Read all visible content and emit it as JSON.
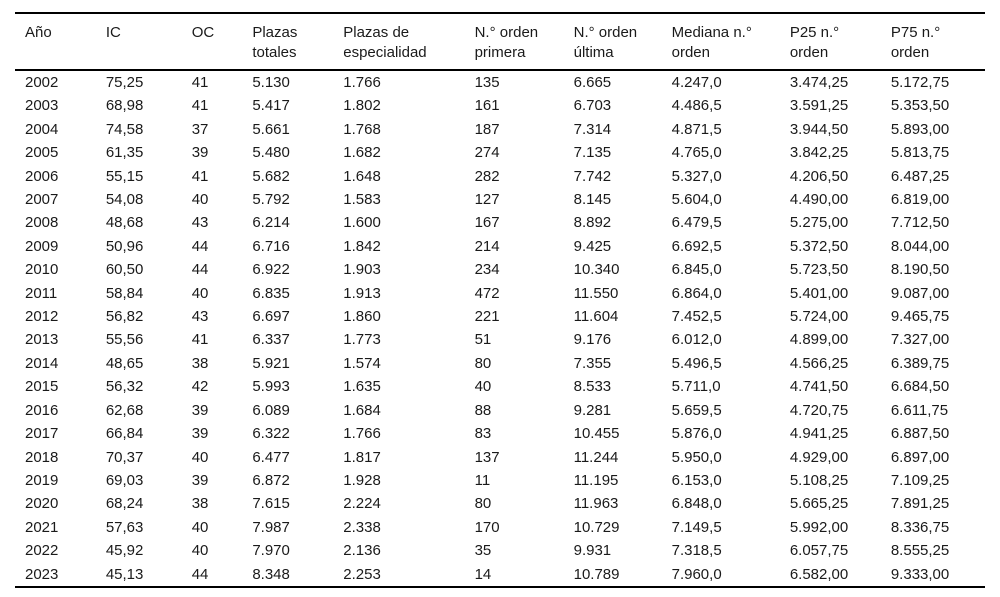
{
  "table": {
    "columns": [
      "Año",
      "IC",
      "OC",
      "Plazas totales",
      "Plazas de especialidad",
      "N.° orden primera",
      "N.° orden última",
      "Mediana n.° orden",
      "P25 n.° orden",
      "P75 n.° orden"
    ],
    "rows": [
      [
        "2002",
        "75,25",
        "41",
        "5.130",
        "1.766",
        "135",
        "6.665",
        "4.247,0",
        "3.474,25",
        "5.172,75"
      ],
      [
        "2003",
        "68,98",
        "41",
        "5.417",
        "1.802",
        "161",
        "6.703",
        "4.486,5",
        "3.591,25",
        "5.353,50"
      ],
      [
        "2004",
        "74,58",
        "37",
        "5.661",
        "1.768",
        "187",
        "7.314",
        "4.871,5",
        "3.944,50",
        "5.893,00"
      ],
      [
        "2005",
        "61,35",
        "39",
        "5.480",
        "1.682",
        "274",
        "7.135",
        "4.765,0",
        "3.842,25",
        "5.813,75"
      ],
      [
        "2006",
        "55,15",
        "41",
        "5.682",
        "1.648",
        "282",
        "7.742",
        "5.327,0",
        "4.206,50",
        "6.487,25"
      ],
      [
        "2007",
        "54,08",
        "40",
        "5.792",
        "1.583",
        "127",
        "8.145",
        "5.604,0",
        "4.490,00",
        "6.819,00"
      ],
      [
        "2008",
        "48,68",
        "43",
        "6.214",
        "1.600",
        "167",
        "8.892",
        "6.479,5",
        "5.275,00",
        "7.712,50"
      ],
      [
        "2009",
        "50,96",
        "44",
        "6.716",
        "1.842",
        "214",
        "9.425",
        "6.692,5",
        "5.372,50",
        "8.044,00"
      ],
      [
        "2010",
        "60,50",
        "44",
        "6.922",
        "1.903",
        "234",
        "10.340",
        "6.845,0",
        "5.723,50",
        "8.190,50"
      ],
      [
        "2011",
        "58,84",
        "40",
        "6.835",
        "1.913",
        "472",
        "11.550",
        "6.864,0",
        "5.401,00",
        "9.087,00"
      ],
      [
        "2012",
        "56,82",
        "43",
        "6.697",
        "1.860",
        "221",
        "11.604",
        "7.452,5",
        "5.724,00",
        "9.465,75"
      ],
      [
        "2013",
        "55,56",
        "41",
        "6.337",
        "1.773",
        "51",
        "9.176",
        "6.012,0",
        "4.899,00",
        "7.327,00"
      ],
      [
        "2014",
        "48,65",
        "38",
        "5.921",
        "1.574",
        "80",
        "7.355",
        "5.496,5",
        "4.566,25",
        "6.389,75"
      ],
      [
        "2015",
        "56,32",
        "42",
        "5.993",
        "1.635",
        "40",
        "8.533",
        "5.711,0",
        "4.741,50",
        "6.684,50"
      ],
      [
        "2016",
        "62,68",
        "39",
        "6.089",
        "1.684",
        "88",
        "9.281",
        "5.659,5",
        "4.720,75",
        "6.611,75"
      ],
      [
        "2017",
        "66,84",
        "39",
        "6.322",
        "1.766",
        "83",
        "10.455",
        "5.876,0",
        "4.941,25",
        "6.887,50"
      ],
      [
        "2018",
        "70,37",
        "40",
        "6.477",
        "1.817",
        "137",
        "11.244",
        "5.950,0",
        "4.929,00",
        "6.897,00"
      ],
      [
        "2019",
        "69,03",
        "39",
        "6.872",
        "1.928",
        "11",
        "11.195",
        "6.153,0",
        "5.108,25",
        "7.109,25"
      ],
      [
        "2020",
        "68,24",
        "38",
        "7.615",
        "2.224",
        "80",
        "11.963",
        "6.848,0",
        "5.665,25",
        "7.891,25"
      ],
      [
        "2021",
        "57,63",
        "40",
        "7.987",
        "2.338",
        "170",
        "10.729",
        "7.149,5",
        "5.992,00",
        "8.336,75"
      ],
      [
        "2022",
        "45,92",
        "40",
        "7.970",
        "2.136",
        "35",
        "9.931",
        "7.318,5",
        "6.057,75",
        "8.555,25"
      ],
      [
        "2023",
        "45,13",
        "44",
        "8.348",
        "2.253",
        "14",
        "10.789",
        "7.960,0",
        "6.582,00",
        "9.333,00"
      ]
    ],
    "text_color": "#1a1a1a",
    "rule_color": "#000000",
    "background_color": "#ffffff"
  }
}
